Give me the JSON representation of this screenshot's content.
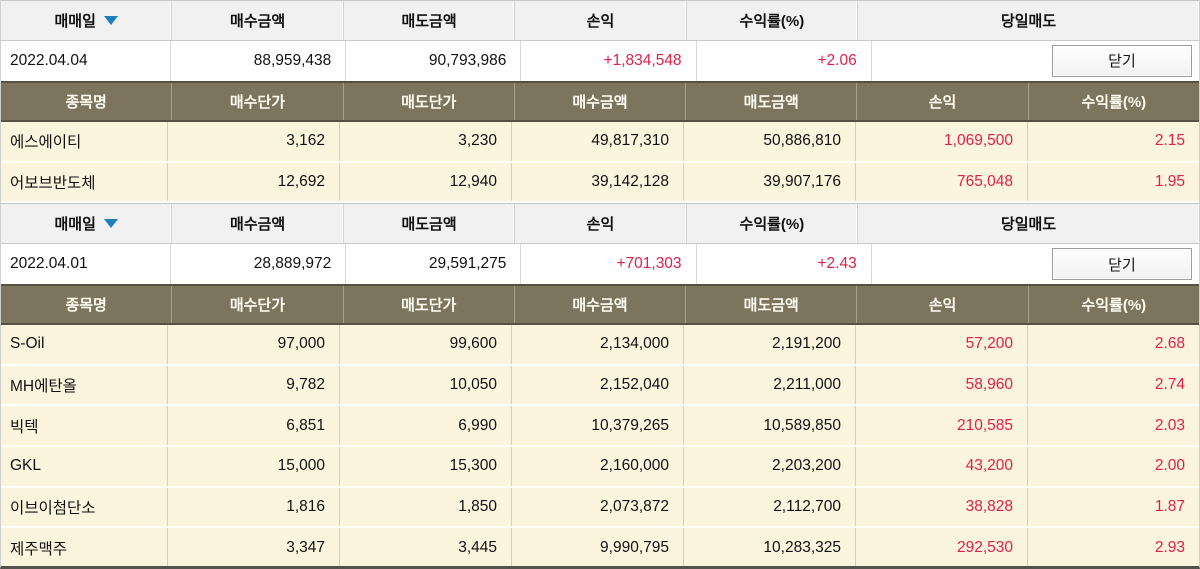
{
  "colors": {
    "profit_red": "#e0204a",
    "sort_arrow_blue": "#1f7ec2",
    "subheader_bg": "#7d745e",
    "data_row_bg": "#faf5dc"
  },
  "summary_header": {
    "trade_date": "매매일",
    "buy_amount": "매수금액",
    "sell_amount": "매도금액",
    "profit": "손익",
    "return_pct": "수익률(%)",
    "day_sell": "당일매도"
  },
  "detail_header": {
    "name": "종목명",
    "buy_price": "매수단가",
    "sell_price": "매도단가",
    "buy_amount": "매수금액",
    "sell_amount": "매도금액",
    "profit": "손익",
    "return_pct": "수익률(%)"
  },
  "close_button_label": "닫기",
  "sections": [
    {
      "date": "2022.04.04",
      "buy_amount": "88,959,438",
      "sell_amount": "90,793,986",
      "profit": "+1,834,548",
      "return_pct": "+2.06",
      "rows": [
        {
          "name": "에스에이티",
          "buy_price": "3,162",
          "sell_price": "3,230",
          "buy_amount": "49,817,310",
          "sell_amount": "50,886,810",
          "profit": "1,069,500",
          "return_pct": "2.15"
        },
        {
          "name": "어보브반도체",
          "buy_price": "12,692",
          "sell_price": "12,940",
          "buy_amount": "39,142,128",
          "sell_amount": "39,907,176",
          "profit": "765,048",
          "return_pct": "1.95"
        }
      ]
    },
    {
      "date": "2022.04.01",
      "buy_amount": "28,889,972",
      "sell_amount": "29,591,275",
      "profit": "+701,303",
      "return_pct": "+2.43",
      "rows": [
        {
          "name": "S-Oil",
          "buy_price": "97,000",
          "sell_price": "99,600",
          "buy_amount": "2,134,000",
          "sell_amount": "2,191,200",
          "profit": "57,200",
          "return_pct": "2.68"
        },
        {
          "name": "MH에탄올",
          "buy_price": "9,782",
          "sell_price": "10,050",
          "buy_amount": "2,152,040",
          "sell_amount": "2,211,000",
          "profit": "58,960",
          "return_pct": "2.74"
        },
        {
          "name": "빅텍",
          "buy_price": "6,851",
          "sell_price": "6,990",
          "buy_amount": "10,379,265",
          "sell_amount": "10,589,850",
          "profit": "210,585",
          "return_pct": "2.03"
        },
        {
          "name": "GKL",
          "buy_price": "15,000",
          "sell_price": "15,300",
          "buy_amount": "2,160,000",
          "sell_amount": "2,203,200",
          "profit": "43,200",
          "return_pct": "2.00"
        },
        {
          "name": "이브이첨단소",
          "buy_price": "1,816",
          "sell_price": "1,850",
          "buy_amount": "2,073,872",
          "sell_amount": "2,112,700",
          "profit": "38,828",
          "return_pct": "1.87"
        },
        {
          "name": "제주맥주",
          "buy_price": "3,347",
          "sell_price": "3,445",
          "buy_amount": "9,990,795",
          "sell_amount": "10,283,325",
          "profit": "292,530",
          "return_pct": "2.93"
        }
      ]
    }
  ]
}
